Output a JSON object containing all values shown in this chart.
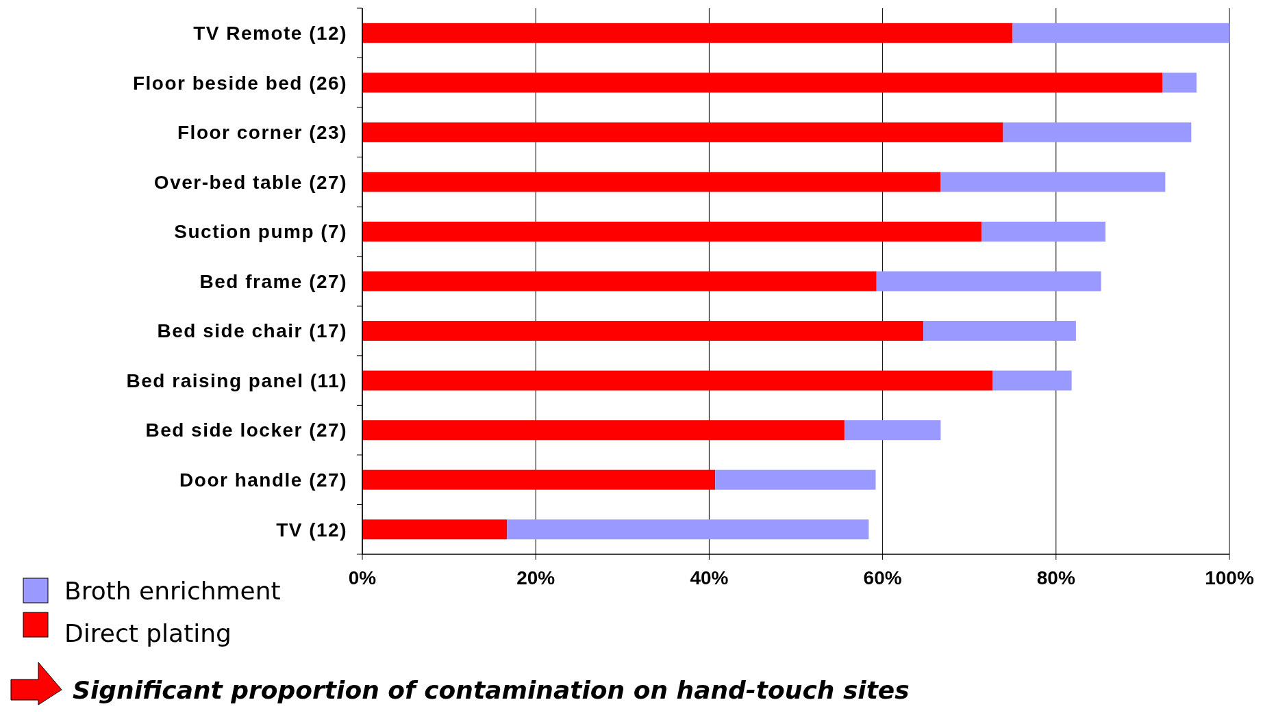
{
  "chart_data": {
    "type": "bar",
    "orientation": "horizontal",
    "stacked": true,
    "categories": [
      "TV Remote (12)",
      "Floor beside bed (26)",
      "Floor corner (23)",
      "Over-bed table (27)",
      "Suction pump (7)",
      "Bed frame (27)",
      "Bed side chair (17)",
      "Bed raising panel (11)",
      "Bed side locker (27)",
      "Door handle (27)",
      "TV (12)"
    ],
    "series": [
      {
        "name": "Direct plating",
        "color": "#ff0000",
        "values": [
          75.0,
          92.3,
          73.9,
          66.7,
          71.4,
          59.3,
          64.7,
          72.7,
          55.6,
          40.7,
          16.7
        ]
      },
      {
        "name": "Broth enrichment",
        "color": "#9999ff",
        "values": [
          25.0,
          3.9,
          21.7,
          25.9,
          14.3,
          25.9,
          17.6,
          9.1,
          11.1,
          18.5,
          41.7
        ]
      }
    ],
    "xlim": [
      0,
      100
    ],
    "xticks": [
      {
        "value": 0,
        "label": "0%"
      },
      {
        "value": 20,
        "label": "20%"
      },
      {
        "value": 40,
        "label": "40%"
      },
      {
        "value": 60,
        "label": "60%"
      },
      {
        "value": 80,
        "label": "80%"
      },
      {
        "value": 100,
        "label": "100%"
      }
    ],
    "grid": "x",
    "legend": "bottom left",
    "annotations": [
      "Significant proportion of contamination on hand-touch sites"
    ]
  }
}
